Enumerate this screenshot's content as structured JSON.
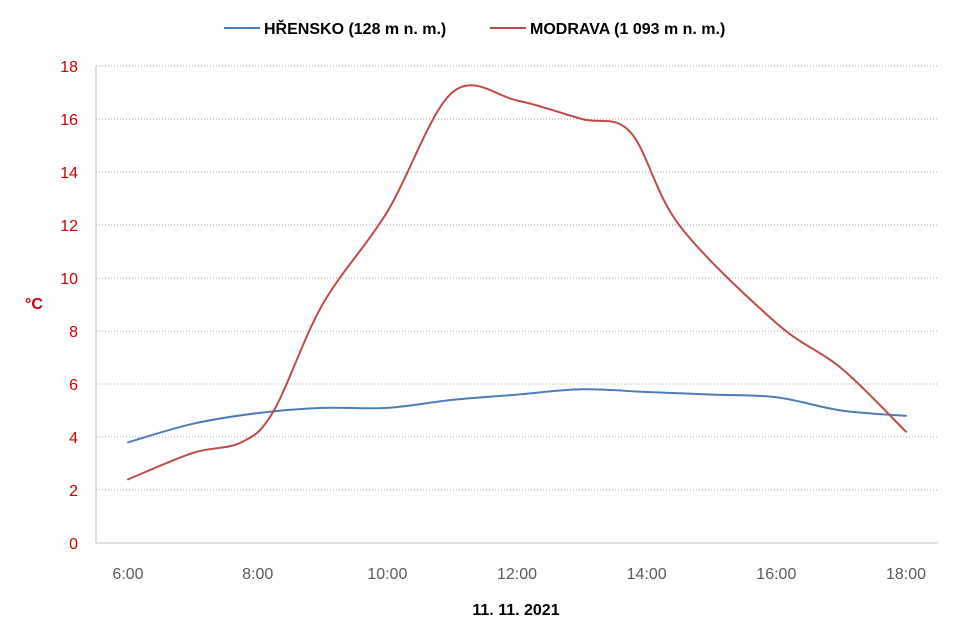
{
  "chart_data": {
    "type": "line",
    "xlabel": "11. 11. 2021",
    "ylabel": "°C",
    "ylim": [
      0,
      18
    ],
    "y_ticks": [
      0,
      2,
      4,
      6,
      8,
      10,
      12,
      14,
      16,
      18
    ],
    "x_range": [
      "6:00",
      "18:00"
    ],
    "x_ticks": [
      "6:00",
      "8:00",
      "10:00",
      "12:00",
      "14:00",
      "16:00",
      "18:00"
    ],
    "grid": true,
    "legend_position": "top",
    "series": [
      {
        "name": "HŘENSKO (128 m n. m.)",
        "color": "#4a7ebb",
        "points": [
          {
            "x": "6:00",
            "y": 3.8
          },
          {
            "x": "7:00",
            "y": 4.5
          },
          {
            "x": "8:00",
            "y": 4.9
          },
          {
            "x": "9:00",
            "y": 5.1
          },
          {
            "x": "10:00",
            "y": 5.1
          },
          {
            "x": "11:00",
            "y": 5.4
          },
          {
            "x": "12:00",
            "y": 5.6
          },
          {
            "x": "13:00",
            "y": 5.8
          },
          {
            "x": "14:00",
            "y": 5.7
          },
          {
            "x": "15:00",
            "y": 5.6
          },
          {
            "x": "16:00",
            "y": 5.5
          },
          {
            "x": "17:00",
            "y": 5.0
          },
          {
            "x": "18:00",
            "y": 4.8
          }
        ]
      },
      {
        "name": "MODRAVA (1 093 m n. m.)",
        "color": "#be4b48",
        "points": [
          {
            "x": "6:00",
            "y": 2.4
          },
          {
            "x": "7:00",
            "y": 3.4
          },
          {
            "x": "7:45",
            "y": 3.8
          },
          {
            "x": "8:15",
            "y": 5.0
          },
          {
            "x": "9:00",
            "y": 9.0
          },
          {
            "x": "10:00",
            "y": 12.5
          },
          {
            "x": "11:00",
            "y": 17.0
          },
          {
            "x": "12:00",
            "y": 16.7
          },
          {
            "x": "13:00",
            "y": 16.0
          },
          {
            "x": "13:45",
            "y": 15.5
          },
          {
            "x": "14:30",
            "y": 12.0
          },
          {
            "x": "16:00",
            "y": 8.3
          },
          {
            "x": "17:00",
            "y": 6.6
          },
          {
            "x": "18:00",
            "y": 4.2
          }
        ]
      }
    ]
  }
}
